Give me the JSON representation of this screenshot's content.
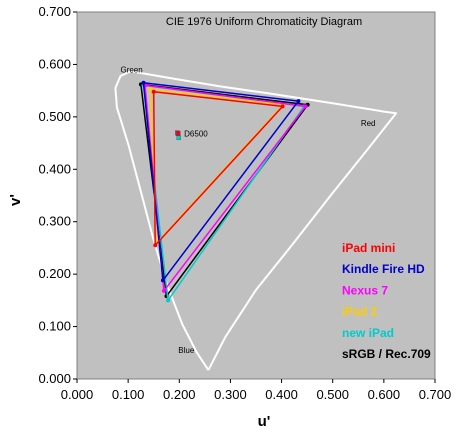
{
  "chart_data": {
    "type": "line",
    "title": "CIE 1976 Uniform Chromaticity Diagram",
    "xlabel": "u'",
    "ylabel": "v'",
    "xlim": [
      0,
      0.7
    ],
    "ylim": [
      0,
      0.7
    ],
    "x_ticks": [
      "0.000",
      "0.100",
      "0.200",
      "0.300",
      "0.400",
      "0.500",
      "0.600",
      "0.700"
    ],
    "y_ticks": [
      "0.000",
      "0.100",
      "0.200",
      "0.300",
      "0.400",
      "0.500",
      "0.600",
      "0.700"
    ],
    "grid": false,
    "plot_background": "#c0c0c0",
    "legend_position": "bottom-right",
    "locus": {
      "color": "#ffffff",
      "points": [
        [
          0.257,
          0.017
        ],
        [
          0.234,
          0.051
        ],
        [
          0.206,
          0.104
        ],
        [
          0.176,
          0.18
        ],
        [
          0.149,
          0.268
        ],
        [
          0.125,
          0.357
        ],
        [
          0.101,
          0.445
        ],
        [
          0.078,
          0.518
        ],
        [
          0.075,
          0.555
        ],
        [
          0.085,
          0.578
        ],
        [
          0.105,
          0.587
        ],
        [
          0.14,
          0.581
        ],
        [
          0.2,
          0.571
        ],
        [
          0.28,
          0.558
        ],
        [
          0.38,
          0.544
        ],
        [
          0.5,
          0.526
        ],
        [
          0.6,
          0.51
        ],
        [
          0.624,
          0.507
        ],
        [
          0.57,
          0.44
        ],
        [
          0.5,
          0.355
        ],
        [
          0.42,
          0.255
        ],
        [
          0.35,
          0.17
        ],
        [
          0.29,
          0.08
        ],
        [
          0.257,
          0.017
        ]
      ]
    },
    "region_labels": [
      {
        "text": "Green",
        "x": 0.085,
        "y": 0.585
      },
      {
        "text": "Red",
        "x": 0.555,
        "y": 0.483
      },
      {
        "text": "Blue",
        "x": 0.198,
        "y": 0.05
      }
    ],
    "white_point": {
      "label": "D6500",
      "x": 0.1978,
      "y": 0.4683
    },
    "series": [
      {
        "name": "sRGB / Rec.709",
        "color": "#000000",
        "points": [
          [
            0.451,
            0.523
          ],
          [
            0.125,
            0.562
          ],
          [
            0.175,
            0.158
          ]
        ],
        "white": [
          0.1978,
          0.4683
        ]
      },
      {
        "name": "new iPad",
        "color": "#00cccc",
        "points": [
          [
            0.444,
            0.52
          ],
          [
            0.13,
            0.56
          ],
          [
            0.178,
            0.15
          ]
        ],
        "white": [
          0.199,
          0.46
        ]
      },
      {
        "name": "iPad 2",
        "color": "#ffcc00",
        "points": [
          [
            0.403,
            0.523
          ],
          [
            0.143,
            0.553
          ],
          [
            0.155,
            0.259
          ]
        ],
        "white": [
          0.197,
          0.468
        ]
      },
      {
        "name": "Nexus 7",
        "color": "#ff00ff",
        "points": [
          [
            0.447,
            0.52
          ],
          [
            0.133,
            0.56
          ],
          [
            0.17,
            0.168
          ]
        ],
        "white": [
          0.196,
          0.47
        ]
      },
      {
        "name": "Kindle Fire HD",
        "color": "#0000cc",
        "points": [
          [
            0.433,
            0.53
          ],
          [
            0.13,
            0.565
          ],
          [
            0.168,
            0.188
          ]
        ],
        "white": [
          0.198,
          0.468
        ]
      },
      {
        "name": "iPad mini",
        "color": "#ff0000",
        "points": [
          [
            0.402,
            0.52
          ],
          [
            0.15,
            0.548
          ],
          [
            0.153,
            0.255
          ]
        ],
        "white": [
          0.198,
          0.469
        ]
      }
    ]
  }
}
